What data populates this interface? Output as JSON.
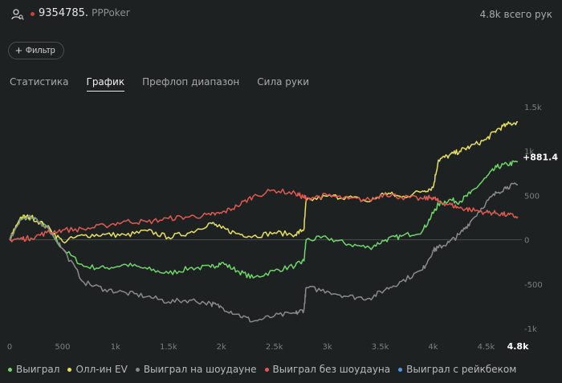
{
  "header": {
    "player_id": "9354785.",
    "room": "PPPoker",
    "hands_total": "4.8k всего рук",
    "user_icon": "user-search-icon",
    "status_color": "#c9413b"
  },
  "filter": {
    "label": "Фильтр",
    "icon": "plus-icon"
  },
  "tabs": [
    {
      "label": "Статистика",
      "active": false
    },
    {
      "label": "График",
      "active": true
    },
    {
      "label": "Префлоп диапазон",
      "active": false
    },
    {
      "label": "Сила руки",
      "active": false
    }
  ],
  "chart_data": {
    "type": "line",
    "x_ticks": [
      "0",
      "500",
      "1k",
      "1.5k",
      "2k",
      "2.5k",
      "3k",
      "3.5k",
      "4k",
      "4.5k"
    ],
    "x_end_label": "4.8k",
    "y_ticks": [
      "1.5k",
      "1k",
      "500",
      "0",
      "-500",
      "-1k"
    ],
    "xlim": [
      0,
      4800
    ],
    "ylim": [
      -1000,
      1500
    ],
    "end_value_label": "+881.4",
    "series": [
      {
        "name": "Выиграл",
        "color": "#6fd66a",
        "visible": true,
        "points": [
          [
            0,
            0
          ],
          [
            100,
            230
          ],
          [
            200,
            250
          ],
          [
            350,
            150
          ],
          [
            500,
            -100
          ],
          [
            700,
            -300
          ],
          [
            900,
            -320
          ],
          [
            1100,
            -280
          ],
          [
            1300,
            -330
          ],
          [
            1500,
            -380
          ],
          [
            1700,
            -320
          ],
          [
            1900,
            -310
          ],
          [
            2000,
            -260
          ],
          [
            2150,
            -350
          ],
          [
            2300,
            -430
          ],
          [
            2500,
            -350
          ],
          [
            2700,
            -290
          ],
          [
            2780,
            -240
          ],
          [
            2800,
            0
          ],
          [
            3000,
            20
          ],
          [
            3200,
            -50
          ],
          [
            3400,
            -90
          ],
          [
            3550,
            0
          ],
          [
            3700,
            40
          ],
          [
            3900,
            100
          ],
          [
            4000,
            300
          ],
          [
            4050,
            400
          ],
          [
            4150,
            450
          ],
          [
            4250,
            430
          ],
          [
            4350,
            520
          ],
          [
            4500,
            700
          ],
          [
            4600,
            820
          ],
          [
            4700,
            850
          ],
          [
            4800,
            880
          ]
        ]
      },
      {
        "name": "Олл-ин EV",
        "color": "#e8e05a",
        "visible": true,
        "points": [
          [
            0,
            0
          ],
          [
            100,
            250
          ],
          [
            200,
            260
          ],
          [
            350,
            150
          ],
          [
            500,
            -20
          ],
          [
            700,
            50
          ],
          [
            900,
            60
          ],
          [
            1100,
            50
          ],
          [
            1300,
            100
          ],
          [
            1500,
            30
          ],
          [
            1700,
            80
          ],
          [
            1900,
            190
          ],
          [
            2000,
            130
          ],
          [
            2150,
            70
          ],
          [
            2300,
            40
          ],
          [
            2500,
            80
          ],
          [
            2700,
            60
          ],
          [
            2780,
            120
          ],
          [
            2800,
            440
          ],
          [
            3000,
            490
          ],
          [
            3200,
            480
          ],
          [
            3400,
            430
          ],
          [
            3550,
            530
          ],
          [
            3700,
            480
          ],
          [
            3900,
            550
          ],
          [
            4000,
            590
          ],
          [
            4050,
            900
          ],
          [
            4150,
            950
          ],
          [
            4250,
            1000
          ],
          [
            4350,
            1050
          ],
          [
            4500,
            1130
          ],
          [
            4600,
            1240
          ],
          [
            4700,
            1300
          ],
          [
            4800,
            1330
          ]
        ]
      },
      {
        "name": "Выиграл на шоудауне",
        "color": "#8a8a8a",
        "visible": true,
        "points": [
          [
            0,
            0
          ],
          [
            100,
            230
          ],
          [
            200,
            250
          ],
          [
            350,
            150
          ],
          [
            500,
            -100
          ],
          [
            700,
            -480
          ],
          [
            900,
            -560
          ],
          [
            1100,
            -600
          ],
          [
            1300,
            -640
          ],
          [
            1500,
            -700
          ],
          [
            1700,
            -680
          ],
          [
            1900,
            -720
          ],
          [
            2000,
            -760
          ],
          [
            2150,
            -840
          ],
          [
            2300,
            -920
          ],
          [
            2500,
            -860
          ],
          [
            2700,
            -830
          ],
          [
            2780,
            -790
          ],
          [
            2800,
            -540
          ],
          [
            3000,
            -580
          ],
          [
            3200,
            -640
          ],
          [
            3400,
            -660
          ],
          [
            3550,
            -560
          ],
          [
            3700,
            -470
          ],
          [
            3900,
            -340
          ],
          [
            4000,
            -120
          ],
          [
            4050,
            -90
          ],
          [
            4150,
            -30
          ],
          [
            4250,
            60
          ],
          [
            4350,
            200
          ],
          [
            4500,
            420
          ],
          [
            4600,
            530
          ],
          [
            4700,
            600
          ],
          [
            4800,
            620
          ]
        ]
      },
      {
        "name": "Выиграл без шоудауна",
        "color": "#e05a52",
        "visible": true,
        "points": [
          [
            0,
            0
          ],
          [
            100,
            10
          ],
          [
            200,
            20
          ],
          [
            350,
            80
          ],
          [
            500,
            110
          ],
          [
            700,
            120
          ],
          [
            900,
            160
          ],
          [
            1100,
            210
          ],
          [
            1300,
            200
          ],
          [
            1500,
            240
          ],
          [
            1700,
            260
          ],
          [
            1900,
            280
          ],
          [
            2000,
            300
          ],
          [
            2150,
            380
          ],
          [
            2300,
            490
          ],
          [
            2500,
            560
          ],
          [
            2700,
            520
          ],
          [
            2780,
            480
          ],
          [
            2800,
            470
          ],
          [
            3000,
            500
          ],
          [
            3200,
            460
          ],
          [
            3400,
            450
          ],
          [
            3550,
            520
          ],
          [
            3700,
            480
          ],
          [
            3900,
            460
          ],
          [
            4000,
            480
          ],
          [
            4050,
            430
          ],
          [
            4150,
            400
          ],
          [
            4250,
            360
          ],
          [
            4350,
            340
          ],
          [
            4500,
            310
          ],
          [
            4600,
            300
          ],
          [
            4700,
            280
          ],
          [
            4800,
            260
          ]
        ]
      },
      {
        "name": "Выиграл с рейкбеком",
        "color": "#4c9be0",
        "visible": false,
        "points": []
      }
    ]
  }
}
